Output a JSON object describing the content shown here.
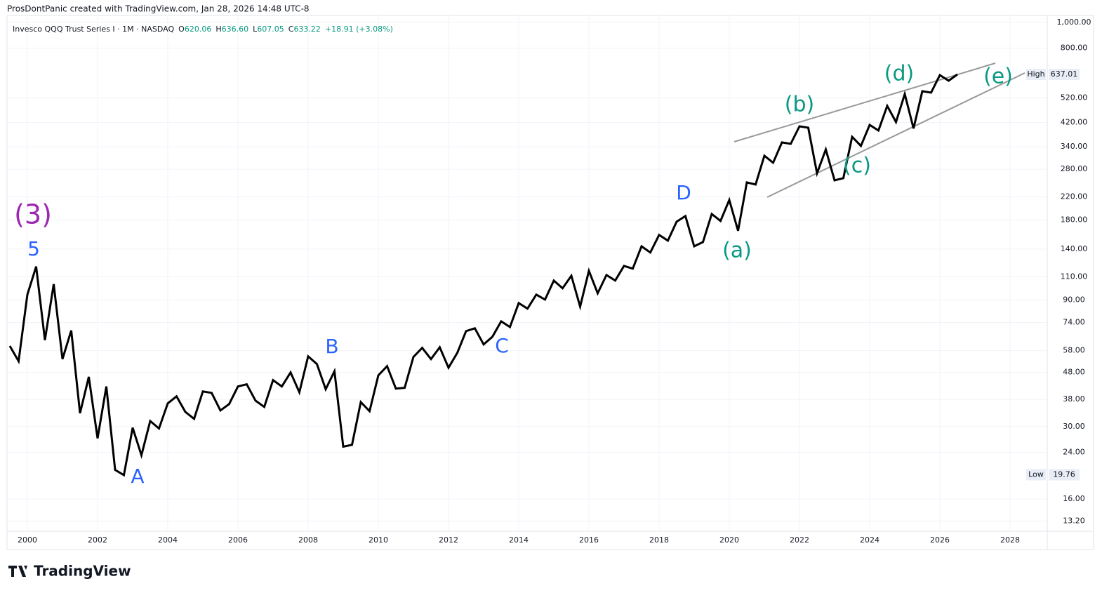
{
  "chart_data": {
    "type": "line",
    "header": "ProsDontPanic created with TradingView.com, Jan 28, 2026 14:48 UTC-8",
    "title": "Invesco QQQ Trust Series I · 1M · NASDAQ",
    "ohlc": [
      {
        "label": "O",
        "value": "620.06"
      },
      {
        "label": "H",
        "value": "636.60"
      },
      {
        "label": "L",
        "value": "607.05"
      },
      {
        "label": "C",
        "value": "633.22"
      }
    ],
    "change": "+18.91 (+3.08%)",
    "brand": "TradingView",
    "color": "#000000",
    "log_scale": true,
    "grid": true,
    "x": [
      1999.5,
      1999.75,
      2000,
      2000.25,
      2000.5,
      2000.75,
      2001,
      2001.25,
      2001.5,
      2001.75,
      2002,
      2002.25,
      2002.5,
      2002.75,
      2003,
      2003.25,
      2003.5,
      2003.75,
      2004,
      2004.25,
      2004.5,
      2004.75,
      2005,
      2005.25,
      2005.5,
      2005.75,
      2006,
      2006.25,
      2006.5,
      2006.75,
      2007,
      2007.25,
      2007.5,
      2007.75,
      2008,
      2008.25,
      2008.5,
      2008.75,
      2009,
      2009.25,
      2009.5,
      2009.75,
      2010,
      2010.25,
      2010.5,
      2010.75,
      2011,
      2011.25,
      2011.5,
      2011.75,
      2012,
      2012.25,
      2012.5,
      2012.75,
      2013,
      2013.25,
      2013.5,
      2013.75,
      2014,
      2014.25,
      2014.5,
      2014.75,
      2015,
      2015.25,
      2015.5,
      2015.75,
      2016,
      2016.25,
      2016.5,
      2016.75,
      2017,
      2017.25,
      2017.5,
      2017.75,
      2018,
      2018.25,
      2018.5,
      2018.75,
      2019,
      2019.25,
      2019.5,
      2019.75,
      2020,
      2020.25,
      2020.5,
      2020.75,
      2021,
      2021.25,
      2021.5,
      2021.75,
      2022,
      2022.25,
      2022.5,
      2022.75,
      2023,
      2023.25,
      2023.5,
      2023.75,
      2024,
      2024.25,
      2024.5,
      2024.75,
      2025,
      2025.25,
      2025.5,
      2025.75,
      2026,
      2026.25,
      2026.5
    ],
    "values": [
      60.4,
      52.9,
      94.3,
      120.3,
      63.5,
      103.3,
      53.9,
      69.1,
      33.7,
      46.2,
      27.1,
      42.5,
      20.6,
      19.7,
      29.7,
      23.4,
      31.5,
      29.5,
      36.7,
      39.0,
      34.1,
      32.1,
      40.7,
      40.2,
      34.5,
      36.5,
      42.5,
      43.3,
      37.6,
      35.6,
      44.9,
      42.5,
      48.0,
      40.4,
      55.2,
      51.6,
      41.5,
      48.5,
      25.2,
      25.6,
      37.1,
      34.3,
      46.8,
      50.7,
      41.7,
      42.0,
      54.9,
      59.4,
      53.9,
      59.7,
      50.0,
      56.9,
      68.7,
      70.4,
      61.2,
      65.4,
      74.8,
      71.2,
      87.6,
      83.5,
      94.3,
      90.3,
      106.5,
      99.6,
      111.1,
      85.0,
      115.9,
      95.4,
      111.8,
      106.5,
      121.0,
      118.1,
      143.4,
      135.9,
      158.2,
      150.6,
      177.5,
      186.4,
      143.4,
      148.8,
      189.8,
      178.7,
      214.4,
      164.0,
      249.7,
      245.1,
      314.7,
      296.1,
      353.2,
      348.9,
      406.2,
      401.3,
      270.2,
      332.3,
      254.3,
      258.9,
      370.8,
      342.6,
      411.2,
      391.7,
      484.8,
      421.4,
      537.5,
      398.9,
      550.7,
      544.1,
      633.5,
      603.5,
      637.5
    ],
    "xlim": [
      1999.42,
      2029.06
    ],
    "xticks": [
      2000,
      2002,
      2004,
      2006,
      2008,
      2010,
      2012,
      2014,
      2016,
      2018,
      2020,
      2022,
      2024,
      2026,
      2028
    ],
    "ylim": [
      12.1,
      1063
    ],
    "yticks": [
      {
        "value": 1000,
        "label": "1,000.00"
      },
      {
        "value": 800,
        "label": "800.00"
      },
      {
        "value": 520,
        "label": "520.00"
      },
      {
        "value": 420,
        "label": "420.00"
      },
      {
        "value": 340,
        "label": "340.00"
      },
      {
        "value": 280,
        "label": "280.00"
      },
      {
        "value": 220,
        "label": "220.00"
      },
      {
        "value": 180,
        "label": "180.00"
      },
      {
        "value": 140,
        "label": "140.00"
      },
      {
        "value": 110,
        "label": "110.00"
      },
      {
        "value": 90,
        "label": "90.00"
      },
      {
        "value": 74,
        "label": "74.00"
      },
      {
        "value": 58,
        "label": "58.00"
      },
      {
        "value": 48,
        "label": "48.00"
      },
      {
        "value": 38,
        "label": "38.00"
      },
      {
        "value": 30,
        "label": "30.00"
      },
      {
        "value": 24,
        "label": "24.00"
      },
      {
        "value": 16,
        "label": "16.00"
      },
      {
        "value": 13.2,
        "label": "13.20"
      }
    ],
    "price_tags": [
      {
        "label": "High",
        "value": 637.01
      },
      {
        "label": "Low",
        "value": 19.76
      }
    ],
    "annotations": [
      {
        "text": "(3)",
        "color": "#9c27b0"
      },
      {
        "text": "5",
        "color": "#2962ff"
      },
      {
        "text": "A",
        "color": "#2962ff"
      },
      {
        "text": "B",
        "color": "#2962ff"
      },
      {
        "text": "C",
        "color": "#2962ff"
      },
      {
        "text": "D",
        "color": "#2962ff"
      },
      {
        "text": "(a)",
        "color": "#089981"
      },
      {
        "text": "(b)",
        "color": "#089981"
      },
      {
        "text": "(c)",
        "color": "#089981"
      },
      {
        "text": "(d)",
        "color": "#089981"
      },
      {
        "text": "(e)",
        "color": "#089981"
      }
    ]
  }
}
